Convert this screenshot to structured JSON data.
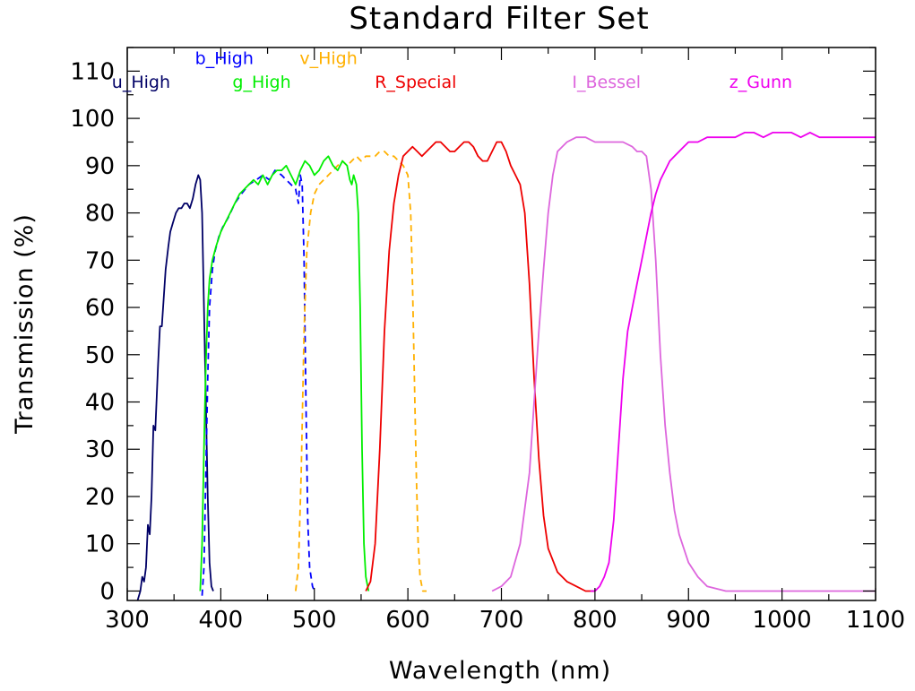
{
  "chart_data": {
    "type": "line",
    "title": "Standard Filter Set",
    "xlabel": "Wavelength (nm)",
    "ylabel": "Transmission (%)",
    "xlim": [
      300,
      1100
    ],
    "ylim": [
      -2,
      115
    ],
    "xticks": [
      300,
      400,
      500,
      600,
      700,
      800,
      900,
      1000,
      1100
    ],
    "yticks": [
      0,
      10,
      20,
      30,
      40,
      50,
      60,
      70,
      80,
      90,
      100,
      110
    ],
    "grid": false,
    "series": [
      {
        "name": "u_High",
        "color": "#000066",
        "dashed": false,
        "points": [
          [
            311,
            -2
          ],
          [
            314,
            0
          ],
          [
            316,
            3
          ],
          [
            318,
            2
          ],
          [
            320,
            5
          ],
          [
            322,
            14
          ],
          [
            324,
            12
          ],
          [
            326,
            20
          ],
          [
            328,
            35
          ],
          [
            330,
            34
          ],
          [
            333,
            48
          ],
          [
            335,
            56
          ],
          [
            337,
            56
          ],
          [
            339,
            62
          ],
          [
            341,
            68
          ],
          [
            344,
            73
          ],
          [
            346,
            76
          ],
          [
            349,
            78
          ],
          [
            352,
            80
          ],
          [
            355,
            81
          ],
          [
            358,
            81
          ],
          [
            361,
            82
          ],
          [
            364,
            82
          ],
          [
            367,
            81
          ],
          [
            370,
            83
          ],
          [
            373,
            86
          ],
          [
            376,
            88
          ],
          [
            378,
            87
          ],
          [
            380,
            80
          ],
          [
            382,
            60
          ],
          [
            384,
            40
          ],
          [
            386,
            20
          ],
          [
            388,
            6
          ],
          [
            390,
            1
          ],
          [
            392,
            0
          ]
        ]
      },
      {
        "name": "b_High",
        "color": "#0000ff",
        "dashed": true,
        "points": [
          [
            380,
            -1
          ],
          [
            382,
            5
          ],
          [
            384,
            25
          ],
          [
            386,
            45
          ],
          [
            388,
            60
          ],
          [
            391,
            68
          ],
          [
            394,
            72
          ],
          [
            398,
            75
          ],
          [
            402,
            77
          ],
          [
            408,
            79
          ],
          [
            415,
            82
          ],
          [
            422,
            84
          ],
          [
            430,
            86
          ],
          [
            438,
            87
          ],
          [
            445,
            88
          ],
          [
            452,
            87
          ],
          [
            458,
            89
          ],
          [
            465,
            88
          ],
          [
            470,
            87
          ],
          [
            475,
            86
          ],
          [
            480,
            85
          ],
          [
            483,
            82
          ],
          [
            485,
            88
          ],
          [
            487,
            86
          ],
          [
            489,
            70
          ],
          [
            491,
            40
          ],
          [
            493,
            15
          ],
          [
            495,
            5
          ],
          [
            498,
            1
          ],
          [
            500,
            0
          ]
        ]
      },
      {
        "name": "v_High",
        "color": "#ffb000",
        "dashed": true,
        "points": [
          [
            480,
            0
          ],
          [
            483,
            5
          ],
          [
            486,
            25
          ],
          [
            489,
            55
          ],
          [
            492,
            72
          ],
          [
            496,
            80
          ],
          [
            500,
            84
          ],
          [
            505,
            86
          ],
          [
            510,
            87
          ],
          [
            515,
            88
          ],
          [
            520,
            89
          ],
          [
            525,
            90
          ],
          [
            530,
            91
          ],
          [
            535,
            90
          ],
          [
            540,
            91
          ],
          [
            545,
            92
          ],
          [
            550,
            91
          ],
          [
            555,
            92
          ],
          [
            560,
            92
          ],
          [
            565,
            92
          ],
          [
            570,
            93
          ],
          [
            575,
            93
          ],
          [
            580,
            92
          ],
          [
            585,
            92
          ],
          [
            590,
            91
          ],
          [
            595,
            90
          ],
          [
            600,
            88
          ],
          [
            603,
            80
          ],
          [
            605,
            65
          ],
          [
            607,
            45
          ],
          [
            609,
            25
          ],
          [
            611,
            10
          ],
          [
            613,
            3
          ],
          [
            616,
            0
          ],
          [
            620,
            0
          ]
        ]
      },
      {
        "name": "g_High",
        "color": "#00ee00",
        "dashed": false,
        "points": [
          [
            378,
            0
          ],
          [
            380,
            10
          ],
          [
            382,
            30
          ],
          [
            384,
            48
          ],
          [
            386,
            60
          ],
          [
            388,
            66
          ],
          [
            391,
            70
          ],
          [
            395,
            73
          ],
          [
            400,
            76
          ],
          [
            405,
            78
          ],
          [
            410,
            80
          ],
          [
            415,
            82
          ],
          [
            420,
            84
          ],
          [
            425,
            85
          ],
          [
            430,
            86
          ],
          [
            435,
            87
          ],
          [
            440,
            86
          ],
          [
            445,
            88
          ],
          [
            450,
            86
          ],
          [
            455,
            88
          ],
          [
            460,
            89
          ],
          [
            465,
            89
          ],
          [
            470,
            90
          ],
          [
            475,
            88
          ],
          [
            480,
            86
          ],
          [
            485,
            89
          ],
          [
            490,
            91
          ],
          [
            495,
            90
          ],
          [
            500,
            88
          ],
          [
            505,
            89
          ],
          [
            510,
            91
          ],
          [
            515,
            92
          ],
          [
            520,
            90
          ],
          [
            525,
            89
          ],
          [
            530,
            91
          ],
          [
            535,
            90
          ],
          [
            538,
            87
          ],
          [
            540,
            86
          ],
          [
            542,
            88
          ],
          [
            545,
            86
          ],
          [
            547,
            80
          ],
          [
            549,
            60
          ],
          [
            551,
            30
          ],
          [
            553,
            10
          ],
          [
            555,
            3
          ],
          [
            558,
            0
          ]
        ]
      },
      {
        "name": "R_Special",
        "color": "#ee0000",
        "dashed": false,
        "points": [
          [
            555,
            0
          ],
          [
            560,
            2
          ],
          [
            565,
            10
          ],
          [
            570,
            30
          ],
          [
            575,
            55
          ],
          [
            580,
            72
          ],
          [
            585,
            82
          ],
          [
            590,
            88
          ],
          [
            595,
            92
          ],
          [
            600,
            93
          ],
          [
            605,
            94
          ],
          [
            610,
            93
          ],
          [
            615,
            92
          ],
          [
            620,
            93
          ],
          [
            625,
            94
          ],
          [
            630,
            95
          ],
          [
            635,
            95
          ],
          [
            640,
            94
          ],
          [
            645,
            93
          ],
          [
            650,
            93
          ],
          [
            655,
            94
          ],
          [
            660,
            95
          ],
          [
            665,
            95
          ],
          [
            670,
            94
          ],
          [
            675,
            92
          ],
          [
            680,
            91
          ],
          [
            685,
            91
          ],
          [
            690,
            93
          ],
          [
            695,
            95
          ],
          [
            700,
            95
          ],
          [
            705,
            93
          ],
          [
            710,
            90
          ],
          [
            715,
            88
          ],
          [
            720,
            86
          ],
          [
            725,
            80
          ],
          [
            730,
            65
          ],
          [
            735,
            45
          ],
          [
            740,
            28
          ],
          [
            745,
            16
          ],
          [
            750,
            9
          ],
          [
            760,
            4
          ],
          [
            770,
            2
          ],
          [
            780,
            1
          ],
          [
            790,
            0
          ],
          [
            800,
            0
          ]
        ]
      },
      {
        "name": "I_Bessel",
        "color": "#dd66dd",
        "dashed": false,
        "points": [
          [
            690,
            0
          ],
          [
            700,
            1
          ],
          [
            710,
            3
          ],
          [
            720,
            10
          ],
          [
            730,
            25
          ],
          [
            735,
            40
          ],
          [
            740,
            55
          ],
          [
            745,
            68
          ],
          [
            750,
            80
          ],
          [
            755,
            88
          ],
          [
            760,
            93
          ],
          [
            770,
            95
          ],
          [
            780,
            96
          ],
          [
            790,
            96
          ],
          [
            800,
            95
          ],
          [
            810,
            95
          ],
          [
            820,
            95
          ],
          [
            830,
            95
          ],
          [
            840,
            94
          ],
          [
            845,
            93
          ],
          [
            850,
            93
          ],
          [
            855,
            92
          ],
          [
            860,
            85
          ],
          [
            865,
            70
          ],
          [
            870,
            50
          ],
          [
            875,
            35
          ],
          [
            880,
            25
          ],
          [
            885,
            17
          ],
          [
            890,
            12
          ],
          [
            900,
            6
          ],
          [
            910,
            3
          ],
          [
            920,
            1
          ],
          [
            940,
            0
          ],
          [
            1100,
            0
          ]
        ]
      },
      {
        "name": "z_Gunn",
        "color": "#ee00ee",
        "dashed": false,
        "points": [
          [
            795,
            0
          ],
          [
            800,
            0
          ],
          [
            805,
            1
          ],
          [
            810,
            3
          ],
          [
            815,
            6
          ],
          [
            820,
            15
          ],
          [
            825,
            30
          ],
          [
            830,
            45
          ],
          [
            835,
            55
          ],
          [
            840,
            60
          ],
          [
            845,
            65
          ],
          [
            850,
            70
          ],
          [
            855,
            75
          ],
          [
            860,
            80
          ],
          [
            865,
            84
          ],
          [
            870,
            87
          ],
          [
            875,
            89
          ],
          [
            880,
            91
          ],
          [
            885,
            92
          ],
          [
            890,
            93
          ],
          [
            895,
            94
          ],
          [
            900,
            95
          ],
          [
            910,
            95
          ],
          [
            920,
            96
          ],
          [
            930,
            96
          ],
          [
            940,
            96
          ],
          [
            950,
            96
          ],
          [
            960,
            97
          ],
          [
            970,
            97
          ],
          [
            980,
            96
          ],
          [
            990,
            97
          ],
          [
            1000,
            97
          ],
          [
            1010,
            97
          ],
          [
            1020,
            96
          ],
          [
            1030,
            97
          ],
          [
            1040,
            96
          ],
          [
            1050,
            96
          ],
          [
            1060,
            96
          ],
          [
            1070,
            96
          ],
          [
            1080,
            96
          ],
          [
            1090,
            96
          ],
          [
            1100,
            96
          ]
        ]
      }
    ],
    "legend_labels": [
      {
        "text": "u_High",
        "color": "#000066",
        "x": 346,
        "y": 106.5
      },
      {
        "text": "b_High",
        "color": "#0000ff",
        "x": 435,
        "y": 111.5
      },
      {
        "text": "v_High",
        "color": "#ffb000",
        "x": 546,
        "y": 111.5
      },
      {
        "text": "g_High",
        "color": "#00ee00",
        "x": 475,
        "y": 106.5
      },
      {
        "text": "R_Special",
        "color": "#ee0000",
        "x": 652,
        "y": 106.5
      },
      {
        "text": "I_Bessel",
        "color": "#dd66dd",
        "x": 849,
        "y": 106.5
      },
      {
        "text": "z_Gunn",
        "color": "#ee00ee",
        "x": 1011,
        "y": 106.5
      }
    ]
  }
}
